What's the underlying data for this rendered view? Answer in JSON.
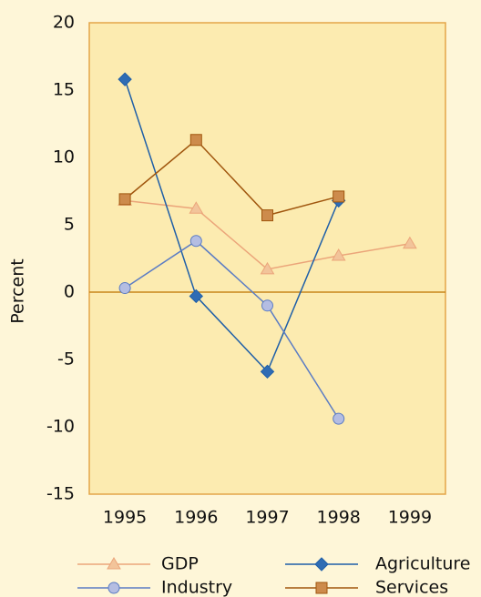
{
  "chart_data": {
    "type": "line",
    "y_label": "Percent",
    "categories": [
      "1995",
      "1996",
      "1997",
      "1998",
      "1999"
    ],
    "ylim": [
      -15,
      20
    ],
    "yticks": [
      -15,
      -10,
      -5,
      0,
      5,
      10,
      15,
      20
    ],
    "zero_line": true,
    "series": [
      {
        "name": "GDP",
        "color": "#eba57a",
        "marker": "triangle",
        "marker_color": "#f2c49a",
        "values": [
          6.8,
          6.2,
          1.7,
          2.7,
          3.6
        ]
      },
      {
        "name": "Agriculture",
        "color": "#1f5fa8",
        "marker": "diamond",
        "marker_color": "#2f6cb4",
        "values": [
          15.8,
          -0.3,
          -5.9,
          6.8,
          null
        ]
      },
      {
        "name": "Industry",
        "color": "#5b7cc4",
        "marker": "circle",
        "marker_color": "#b4bde2",
        "values": [
          0.3,
          3.8,
          -1.0,
          -9.4,
          null
        ]
      },
      {
        "name": "Services",
        "color": "#a0560e",
        "marker": "square",
        "marker_color": "#cd8b4c",
        "values": [
          6.9,
          11.3,
          5.7,
          7.1,
          null
        ]
      }
    ]
  }
}
